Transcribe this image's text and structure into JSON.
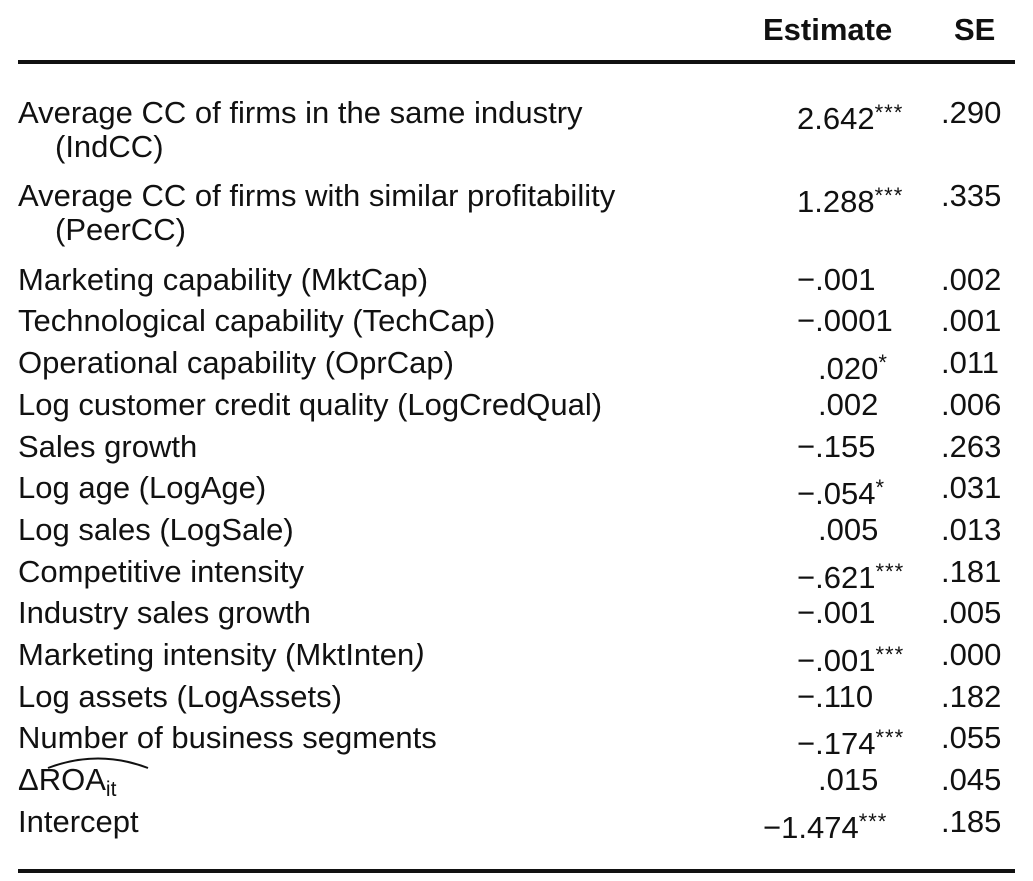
{
  "table": {
    "headers": {
      "estimate": "Estimate",
      "se": "SE"
    },
    "rows": [
      {
        "label": "Average CC of firms in the same industry",
        "label_cont": "(IndCC)",
        "estimate": "2.642",
        "stars": "***",
        "se": ".290"
      },
      {
        "label": "Average CC of firms with similar profitability",
        "label_cont": "(PeerCC)",
        "estimate": "1.288",
        "stars": "***",
        "se": ".335"
      },
      {
        "label": "Marketing capability (MktCap)",
        "estimate": "−.001",
        "stars": "",
        "se": ".002"
      },
      {
        "label": "Technological capability (TechCap)",
        "estimate": "−.0001",
        "stars": "",
        "se": ".001"
      },
      {
        "label": "Operational capability (OprCap)",
        "estimate": ".020",
        "stars": "*",
        "se": ".011"
      },
      {
        "label": "Log customer credit quality (LogCredQual)",
        "estimate": ".002",
        "stars": "",
        "se": ".006"
      },
      {
        "label": "Sales growth",
        "estimate": "−.155",
        "stars": "",
        "se": ".263"
      },
      {
        "label": "Log age (LogAge)",
        "estimate": "−.054",
        "stars": "*",
        "se": ".031"
      },
      {
        "label": "Log sales (LogSale)",
        "estimate": ".005",
        "stars": "",
        "se": ".013"
      },
      {
        "label": "Competitive intensity",
        "estimate": "−.621",
        "stars": "***",
        "se": ".181"
      },
      {
        "label": "Industry sales growth",
        "estimate": "−.001",
        "stars": "",
        "se": ".005"
      },
      {
        "label": "Marketing intensity (MktInten",
        "label_close": ")",
        "estimate": "−.001",
        "stars": "***",
        "se": ".000"
      },
      {
        "label": "Log assets (LogAssets)",
        "estimate": "−.110",
        "stars": "",
        "se": ".182"
      },
      {
        "label": "Number of business segments",
        "estimate": "−.174",
        "stars": "***",
        "se": ".055"
      },
      {
        "label_delta": "Δ",
        "label_main": "ROA",
        "label_sub": "it",
        "estimate": ".015",
        "stars": "",
        "se": ".045"
      },
      {
        "label": "Intercept",
        "estimate": "−1.474",
        "stars": "***",
        "se": ".185"
      }
    ]
  }
}
